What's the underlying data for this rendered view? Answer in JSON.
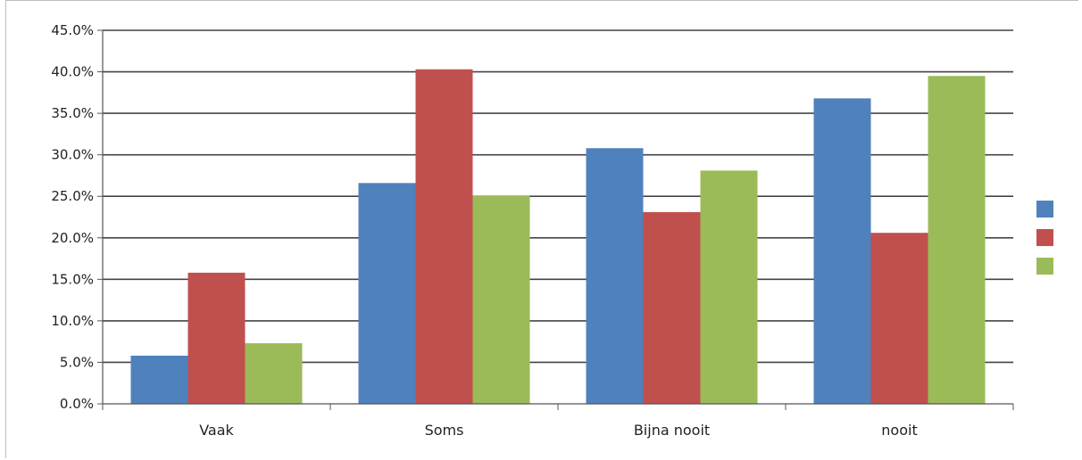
{
  "chart_data": {
    "type": "bar",
    "categories": [
      "Vaak",
      "Soms",
      "Bijna nooit",
      "nooit"
    ],
    "series": [
      {
        "values": [
          5.8,
          26.6,
          30.8,
          36.8
        ],
        "color": "#4f81bd"
      },
      {
        "values": [
          15.8,
          40.3,
          23.1,
          20.6
        ],
        "color": "#c0504d"
      },
      {
        "values": [
          7.3,
          25.1,
          28.1,
          39.5
        ],
        "color": "#9bbb59"
      }
    ],
    "yticks": [
      "0.0%",
      "5.0%",
      "10.0%",
      "15.0%",
      "20.0%",
      "25.0%",
      "30.0%",
      "35.0%",
      "40.0%",
      "45.0%"
    ],
    "ylim": [
      0,
      45
    ],
    "y_unit": "percent",
    "title": "",
    "xlabel": "",
    "ylabel": "",
    "grid": true,
    "legend": "right, color swatches only"
  }
}
